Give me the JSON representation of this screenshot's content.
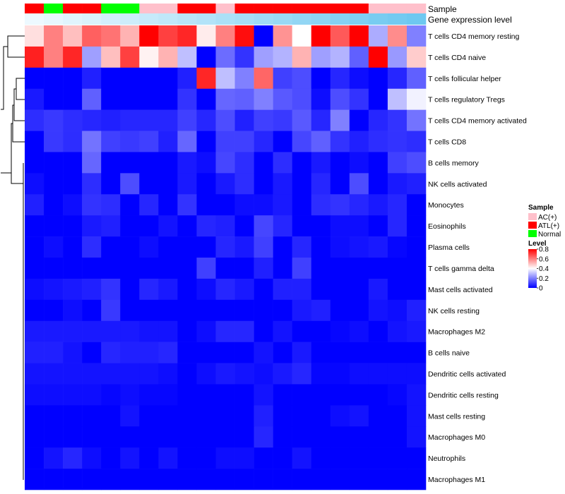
{
  "chart_data": {
    "type": "heatmap",
    "title": "",
    "annotation_labels": {
      "sample": "Sample",
      "expression": "Gene expression level"
    },
    "sample_groups": [
      "ATL(+)",
      "Normal",
      "ATL(+)",
      "ATL(+)",
      "Normal",
      "Normal",
      "AC(+)",
      "AC(+)",
      "ATL(+)",
      "ATL(+)",
      "AC(+)",
      "ATL(+)",
      "ATL(+)",
      "ATL(+)",
      "ATL(+)",
      "ATL(+)",
      "ATL(+)",
      "ATL(+)",
      "AC(+)",
      "AC(+)",
      "AC(+)"
    ],
    "sample_colors": {
      "AC(+)": "#FFC0CB",
      "ATL(+)": "#FF0000",
      "Normal": "#00FF00"
    },
    "expression_annotation": [
      0.02,
      0.07,
      0.12,
      0.17,
      0.22,
      0.27,
      0.32,
      0.37,
      0.42,
      0.47,
      0.52,
      0.57,
      0.62,
      0.67,
      0.72,
      0.77,
      0.82,
      0.87,
      0.92,
      0.96,
      1.0
    ],
    "row_labels": [
      "T cells CD4 memory resting",
      "T cells CD4 naive",
      "T cells follicular helper",
      "T cells regulatory  Tregs",
      "T cells CD4 memory activated",
      "T cells CD8",
      "B cells memory",
      "NK cells activated",
      "Monocytes",
      "Eosinophils",
      "Plasma cells",
      "T cells gamma delta",
      "Mast cells activated",
      "NK cells resting",
      "Macrophages M2",
      "B cells naive",
      "Dendritic cells activated",
      "Dendritic cells resting",
      "Mast cells resting",
      "Macrophages M0",
      "Neutrophils",
      "Macrophages M1"
    ],
    "values": [
      [
        0.45,
        0.6,
        0.5,
        0.65,
        0.62,
        0.52,
        0.8,
        0.7,
        0.74,
        0.43,
        0.6,
        0.78,
        0.0,
        0.57,
        0.4,
        0.8,
        0.66,
        0.8,
        0.27,
        0.58,
        0.2
      ],
      [
        0.75,
        0.6,
        0.74,
        0.25,
        0.5,
        0.7,
        0.42,
        0.52,
        0.3,
        0.0,
        0.17,
        0.08,
        0.25,
        0.28,
        0.52,
        0.25,
        0.28,
        0.15,
        0.8,
        0.24,
        0.48
      ],
      [
        0.0,
        0.0,
        0.0,
        0.05,
        0.0,
        0.0,
        0.0,
        0.0,
        0.05,
        0.74,
        0.3,
        0.2,
        0.64,
        0.1,
        0.12,
        0.0,
        0.06,
        0.02,
        0.0,
        0.06,
        0.15
      ],
      [
        0.04,
        0.0,
        0.0,
        0.15,
        0.0,
        0.0,
        0.0,
        0.0,
        0.08,
        0.0,
        0.16,
        0.15,
        0.2,
        0.14,
        0.12,
        0.02,
        0.12,
        0.08,
        0.0,
        0.3,
        0.38
      ],
      [
        0.07,
        0.09,
        0.07,
        0.06,
        0.05,
        0.06,
        0.06,
        0.06,
        0.1,
        0.06,
        0.12,
        0.05,
        0.1,
        0.09,
        0.14,
        0.06,
        0.2,
        0.0,
        0.06,
        0.08,
        0.18
      ],
      [
        0.0,
        0.09,
        0.07,
        0.18,
        0.1,
        0.09,
        0.1,
        0.05,
        0.16,
        0.0,
        0.1,
        0.1,
        0.06,
        0.0,
        0.11,
        0.15,
        0.08,
        0.05,
        0.07,
        0.08,
        0.07
      ],
      [
        0.0,
        0.0,
        0.0,
        0.16,
        0.0,
        0.0,
        0.0,
        0.0,
        0.04,
        0.02,
        0.11,
        0.07,
        0.0,
        0.07,
        0.0,
        0.04,
        0.0,
        0.02,
        0.0,
        0.1,
        0.12
      ],
      [
        0.02,
        0.0,
        0.0,
        0.07,
        0.0,
        0.12,
        0.0,
        0.0,
        0.04,
        0.0,
        0.04,
        0.07,
        0.0,
        0.04,
        0.0,
        0.06,
        0.0,
        0.12,
        0.0,
        0.04,
        0.05
      ],
      [
        0.05,
        0.0,
        0.02,
        0.08,
        0.07,
        0.0,
        0.06,
        0.0,
        0.08,
        0.0,
        0.0,
        0.02,
        0.02,
        0.04,
        0.0,
        0.07,
        0.08,
        0.06,
        0.04,
        0.06,
        0.0
      ],
      [
        0.0,
        0.0,
        0.0,
        0.04,
        0.05,
        0.0,
        0.0,
        0.03,
        0.0,
        0.06,
        0.05,
        0.0,
        0.11,
        0.06,
        0.0,
        0.0,
        0.02,
        0.02,
        0.0,
        0.06,
        0.0
      ],
      [
        0.0,
        0.02,
        0.0,
        0.07,
        0.0,
        0.0,
        0.02,
        0.0,
        0.0,
        0.0,
        0.06,
        0.04,
        0.1,
        0.0,
        0.06,
        0.0,
        0.02,
        0.03,
        0.04,
        0.01,
        0.0
      ],
      [
        0.0,
        0.0,
        0.0,
        0.0,
        0.0,
        0.0,
        0.0,
        0.0,
        0.0,
        0.1,
        0.0,
        0.0,
        0.05,
        0.0,
        0.1,
        0.0,
        0.0,
        0.0,
        0.0,
        0.0,
        0.0
      ],
      [
        0.02,
        0.03,
        0.04,
        0.05,
        0.08,
        0.0,
        0.06,
        0.04,
        0.0,
        0.02,
        0.06,
        0.04,
        0.0,
        0.05,
        0.05,
        0.0,
        0.0,
        0.0,
        0.04,
        0.0,
        0.0
      ],
      [
        0.0,
        0.0,
        0.02,
        0.0,
        0.09,
        0.0,
        0.0,
        0.0,
        0.0,
        0.0,
        0.0,
        0.0,
        0.0,
        0.0,
        0.04,
        0.05,
        0.0,
        0.0,
        0.03,
        0.02,
        0.05
      ],
      [
        0.04,
        0.04,
        0.04,
        0.04,
        0.04,
        0.04,
        0.03,
        0.03,
        0.0,
        0.02,
        0.06,
        0.06,
        0.0,
        0.03,
        0.0,
        0.0,
        0.01,
        0.02,
        0.0,
        0.03,
        0.04
      ],
      [
        0.05,
        0.05,
        0.03,
        0.0,
        0.06,
        0.05,
        0.05,
        0.06,
        0.0,
        0.0,
        0.0,
        0.0,
        0.03,
        0.0,
        0.04,
        0.0,
        0.0,
        0.0,
        0.0,
        0.0,
        0.0
      ],
      [
        0.03,
        0.03,
        0.03,
        0.03,
        0.03,
        0.03,
        0.03,
        0.02,
        0.0,
        0.02,
        0.04,
        0.03,
        0.02,
        0.04,
        0.06,
        0.01,
        0.01,
        0.02,
        0.02,
        0.02,
        0.02
      ],
      [
        0.02,
        0.02,
        0.02,
        0.02,
        0.01,
        0.02,
        0.01,
        0.01,
        0.0,
        0.0,
        0.0,
        0.0,
        0.03,
        0.0,
        0.0,
        0.0,
        0.0,
        0.0,
        0.0,
        0.01,
        0.03
      ],
      [
        0.0,
        0.0,
        0.0,
        0.0,
        0.0,
        0.03,
        0.0,
        0.0,
        0.0,
        0.0,
        0.0,
        0.0,
        0.05,
        0.0,
        0.0,
        0.0,
        0.02,
        0.03,
        0.0,
        0.0,
        0.03
      ],
      [
        0.0,
        0.0,
        0.0,
        0.0,
        0.0,
        0.0,
        0.0,
        0.0,
        0.0,
        0.0,
        0.0,
        0.0,
        0.06,
        0.0,
        0.0,
        0.0,
        0.0,
        0.0,
        0.0,
        0.0,
        0.03
      ],
      [
        0.0,
        0.03,
        0.06,
        0.02,
        0.0,
        0.03,
        0.0,
        0.03,
        0.0,
        0.0,
        0.02,
        0.02,
        0.0,
        0.0,
        0.03,
        0.0,
        0.0,
        0.0,
        0.0,
        0.0,
        0.0
      ],
      [
        0.0,
        0.0,
        0.0,
        0.0,
        0.0,
        0.0,
        0.0,
        0.0,
        0.0,
        0.0,
        0.0,
        0.0,
        0.0,
        0.0,
        0.0,
        0.0,
        0.0,
        0.0,
        0.0,
        0.0,
        0.0
      ]
    ],
    "color_scale": {
      "low": "#0000FF",
      "mid": "#FFFFFF",
      "high": "#FF0000",
      "domain": [
        0,
        0.4,
        0.8
      ]
    },
    "legend_sample": {
      "title": "Sample",
      "entries": [
        "AC(+)",
        "ATL(+)",
        "Normal"
      ]
    },
    "legend_level": {
      "title": "Level",
      "ticks": [
        0.8,
        0.6,
        0.4,
        0.2,
        0
      ]
    },
    "legend_position": "right",
    "row_dendrogram": true,
    "column_dendrogram": false
  }
}
